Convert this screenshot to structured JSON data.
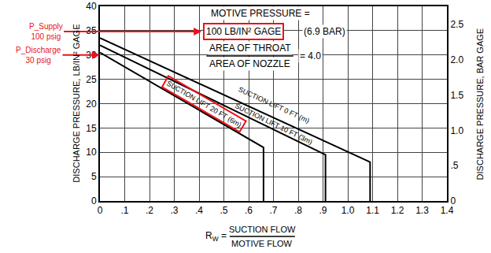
{
  "chart_data": {
    "type": "line",
    "xlabel": {
      "symbol": "R",
      "subscript": "W",
      "sign": "=",
      "numerator": "SUCTION FLOW",
      "denominator": "MOTIVE FLOW"
    },
    "ylabel": "DISCHARGE PRESSURE, LB/IN² GAGE",
    "y2label": "DISCHARGE PRESSURE, BAR GAGE",
    "xlim": [
      0,
      1.4
    ],
    "xticks": [
      0,
      {
        "value": 0.1,
        "label": ".1"
      },
      {
        "value": 0.2,
        "label": ".2"
      },
      {
        "value": 0.3,
        "label": ".3"
      },
      {
        "value": 0.4,
        "label": ".4"
      },
      {
        "value": 0.5,
        "label": ".5"
      },
      {
        "value": 0.6,
        "label": ".6"
      },
      {
        "value": 0.7,
        "label": ".7"
      },
      {
        "value": 0.8,
        "label": ".8"
      },
      {
        "value": 0.9,
        "label": ".9"
      },
      {
        "value": 1,
        "label": "1.0"
      },
      1.1,
      1.2,
      1.3,
      1.4
    ],
    "ylim": [
      0,
      40
    ],
    "yticks": [
      0,
      5,
      10,
      15,
      20,
      25,
      30,
      35,
      40
    ],
    "y2lim": [
      0,
      2.76
    ],
    "y2ticks": [
      0,
      {
        "value": 0.5,
        "label": ".5"
      },
      {
        "value": 1,
        "label": "1.0"
      },
      1.5,
      {
        "value": 2,
        "label": "2.0"
      },
      2.5
    ],
    "grid": true,
    "series": [
      {
        "name": "SUCTION LIFT 0 FT (m)",
        "color": "#000000",
        "x": [
          0,
          1.09,
          1.09
        ],
        "values": [
          33.5,
          8,
          0
        ]
      },
      {
        "name": "SUCTION LIFT 10 FT (3m)",
        "color": "#000000",
        "x": [
          0,
          0.91,
          0.91
        ],
        "values": [
          32,
          9.5,
          0
        ]
      },
      {
        "name": "SUCTION LIFT 20 FT (6m)",
        "color": "#000000",
        "x": [
          0,
          0.66,
          0.66
        ],
        "values": [
          30.5,
          11,
          0
        ]
      }
    ],
    "annotations": {
      "motive": [
        "MOTIVE PRESSURE =",
        "100 LB/IN² GAGE",
        "(6.9 BAR)"
      ],
      "area_ratio": {
        "numerator": "AREA OF THROAT",
        "denominator": "AREA OF NOZZLE",
        "rhs": "= 4.0"
      }
    },
    "callouts": [
      {
        "text": [
          "P_Supply",
          "100 psig"
        ],
        "color": "#e8141b"
      },
      {
        "text": [
          "P_Discharge",
          "30 psig"
        ],
        "color": "#e8141b"
      }
    ]
  }
}
